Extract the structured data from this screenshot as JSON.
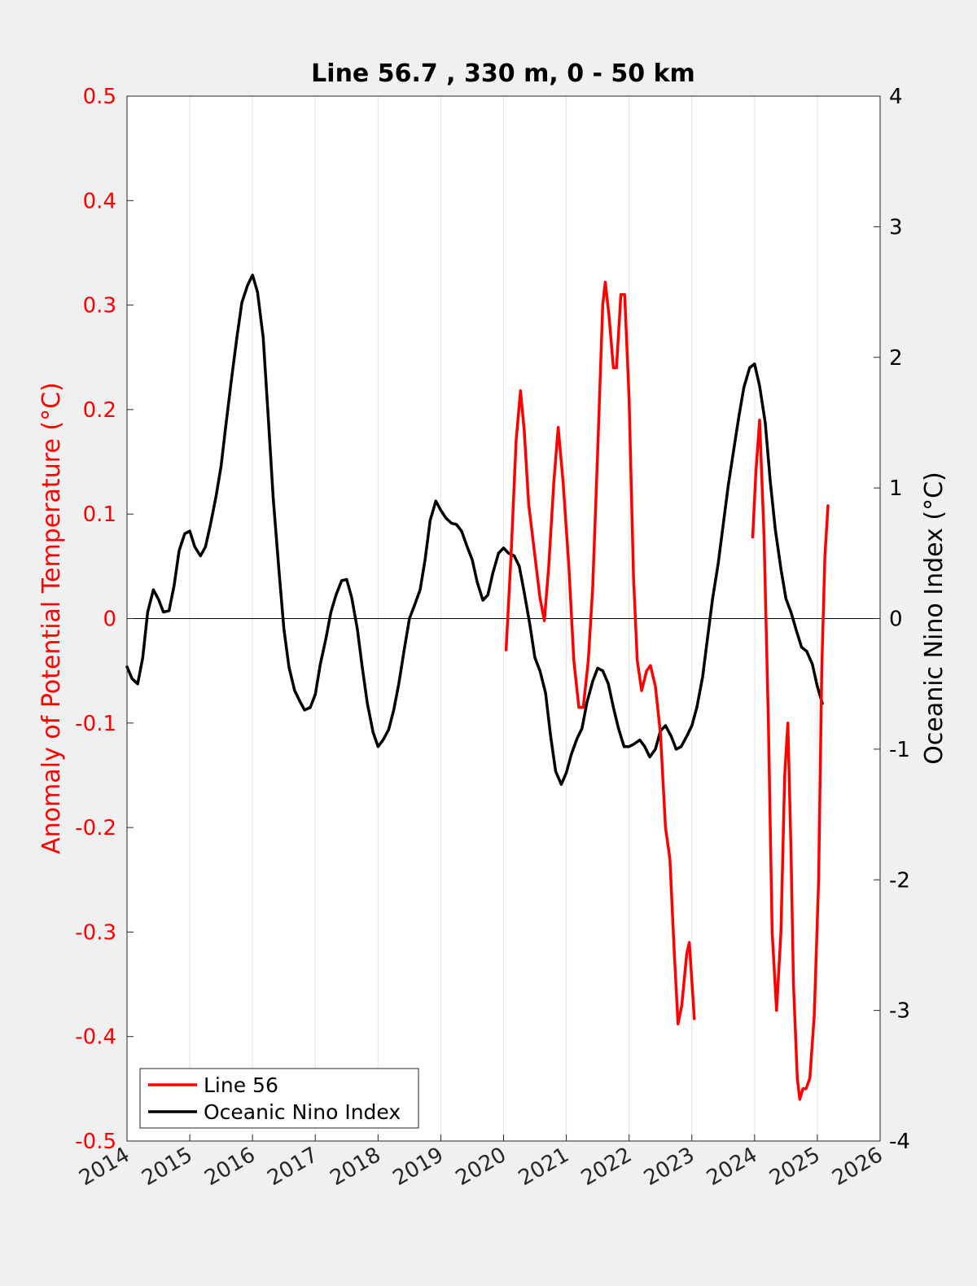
{
  "chart_data": {
    "type": "line",
    "title": "Line 56.7 , 330 m, 0 - 50 km",
    "xlabel": "",
    "ylabel_left": "Anomaly of Potential Temperature (°C)",
    "ylabel_right": "Oceanic Nino Index (°C)",
    "xlim": [
      2014,
      2026
    ],
    "ylim_left": [
      -0.5,
      0.5
    ],
    "ylim_right": [
      -4,
      4
    ],
    "x_ticks": [
      2014,
      2015,
      2016,
      2017,
      2018,
      2019,
      2020,
      2021,
      2022,
      2023,
      2024,
      2025,
      2026
    ],
    "y_ticks_left": [
      "0.5",
      "0.4",
      "0.3",
      "0.2",
      "0.1",
      "0",
      "-0.1",
      "-0.2",
      "-0.3",
      "-0.4",
      "-0.5"
    ],
    "y_ticks_right": [
      "4",
      "3",
      "2",
      "1",
      "0",
      "-1",
      "-2",
      "-3",
      "-4"
    ],
    "grid_x": true,
    "grid_y": false,
    "legend_position": "bottom-left",
    "colors": {
      "line56": "#ff0000",
      "oni": "#000000",
      "left_axis": "#ff0000",
      "right_axis": "#000000"
    },
    "series": [
      {
        "name": "Line 56",
        "axis": "left",
        "segments": [
          [
            [
              2020.04,
              -0.03
            ],
            [
              2020.12,
              0.06
            ],
            [
              2020.2,
              0.17
            ],
            [
              2020.27,
              0.218
            ],
            [
              2020.33,
              0.18
            ],
            [
              2020.4,
              0.11
            ],
            [
              2020.5,
              0.06
            ],
            [
              2020.58,
              0.02
            ],
            [
              2020.65,
              -0.002
            ],
            [
              2020.72,
              0.05
            ],
            [
              2020.8,
              0.13
            ],
            [
              2020.87,
              0.183
            ],
            [
              2020.95,
              0.13
            ],
            [
              2021.04,
              0.05
            ],
            [
              2021.12,
              -0.04
            ],
            [
              2021.2,
              -0.085
            ],
            [
              2021.27,
              -0.085
            ],
            [
              2021.35,
              -0.04
            ],
            [
              2021.42,
              0.03
            ],
            [
              2021.5,
              0.16
            ],
            [
              2021.58,
              0.3
            ],
            [
              2021.62,
              0.322
            ],
            [
              2021.68,
              0.29
            ],
            [
              2021.75,
              0.24
            ],
            [
              2021.8,
              0.24
            ],
            [
              2021.87,
              0.31
            ],
            [
              2021.93,
              0.31
            ],
            [
              2022.0,
              0.21
            ],
            [
              2022.07,
              0.04
            ],
            [
              2022.13,
              -0.04
            ],
            [
              2022.2,
              -0.069
            ],
            [
              2022.28,
              -0.05
            ],
            [
              2022.34,
              -0.045
            ],
            [
              2022.42,
              -0.065
            ],
            [
              2022.5,
              -0.11
            ],
            [
              2022.58,
              -0.2
            ],
            [
              2022.65,
              -0.23
            ],
            [
              2022.72,
              -0.32
            ],
            [
              2022.78,
              -0.388
            ],
            [
              2022.84,
              -0.37
            ],
            [
              2022.92,
              -0.32
            ],
            [
              2022.96,
              -0.31
            ],
            [
              2023.04,
              -0.383
            ]
          ],
          [
            [
              2023.97,
              0.078
            ],
            [
              2024.02,
              0.14
            ],
            [
              2024.08,
              0.19
            ],
            [
              2024.15,
              0.08
            ],
            [
              2024.22,
              -0.1
            ],
            [
              2024.28,
              -0.3
            ],
            [
              2024.35,
              -0.375
            ],
            [
              2024.42,
              -0.3
            ],
            [
              2024.48,
              -0.15
            ],
            [
              2024.53,
              -0.1
            ],
            [
              2024.58,
              -0.22
            ],
            [
              2024.62,
              -0.35
            ],
            [
              2024.68,
              -0.44
            ],
            [
              2024.72,
              -0.46
            ],
            [
              2024.77,
              -0.45
            ],
            [
              2024.82,
              -0.45
            ],
            [
              2024.88,
              -0.44
            ],
            [
              2024.95,
              -0.38
            ],
            [
              2025.02,
              -0.25
            ],
            [
              2025.07,
              -0.05
            ],
            [
              2025.12,
              0.06
            ],
            [
              2025.17,
              0.108
            ]
          ]
        ]
      },
      {
        "name": "Oceanic Nino Index",
        "axis": "right",
        "points": [
          [
            2014.0,
            -0.37
          ],
          [
            2014.08,
            -0.46
          ],
          [
            2014.17,
            -0.5
          ],
          [
            2014.25,
            -0.3
          ],
          [
            2014.33,
            0.05
          ],
          [
            2014.42,
            0.22
          ],
          [
            2014.5,
            0.15
          ],
          [
            2014.58,
            0.05
          ],
          [
            2014.67,
            0.06
          ],
          [
            2014.75,
            0.25
          ],
          [
            2014.83,
            0.52
          ],
          [
            2014.92,
            0.65
          ],
          [
            2015.0,
            0.67
          ],
          [
            2015.08,
            0.55
          ],
          [
            2015.17,
            0.48
          ],
          [
            2015.25,
            0.55
          ],
          [
            2015.33,
            0.72
          ],
          [
            2015.42,
            0.94
          ],
          [
            2015.5,
            1.17
          ],
          [
            2015.58,
            1.5
          ],
          [
            2015.67,
            1.85
          ],
          [
            2015.75,
            2.15
          ],
          [
            2015.83,
            2.42
          ],
          [
            2015.92,
            2.55
          ],
          [
            2016.0,
            2.63
          ],
          [
            2016.08,
            2.5
          ],
          [
            2016.17,
            2.15
          ],
          [
            2016.25,
            1.55
          ],
          [
            2016.33,
            0.92
          ],
          [
            2016.42,
            0.38
          ],
          [
            2016.5,
            -0.08
          ],
          [
            2016.58,
            -0.37
          ],
          [
            2016.67,
            -0.55
          ],
          [
            2016.75,
            -0.63
          ],
          [
            2016.83,
            -0.7
          ],
          [
            2016.92,
            -0.68
          ],
          [
            2017.0,
            -0.58
          ],
          [
            2017.08,
            -0.35
          ],
          [
            2017.17,
            -0.15
          ],
          [
            2017.25,
            0.05
          ],
          [
            2017.33,
            0.18
          ],
          [
            2017.42,
            0.29
          ],
          [
            2017.5,
            0.3
          ],
          [
            2017.58,
            0.16
          ],
          [
            2017.67,
            -0.08
          ],
          [
            2017.75,
            -0.38
          ],
          [
            2017.83,
            -0.65
          ],
          [
            2017.92,
            -0.87
          ],
          [
            2018.0,
            -0.98
          ],
          [
            2018.08,
            -0.93
          ],
          [
            2018.17,
            -0.85
          ],
          [
            2018.25,
            -0.7
          ],
          [
            2018.33,
            -0.5
          ],
          [
            2018.42,
            -0.23
          ],
          [
            2018.5,
            0.0
          ],
          [
            2018.58,
            0.1
          ],
          [
            2018.67,
            0.22
          ],
          [
            2018.75,
            0.45
          ],
          [
            2018.83,
            0.75
          ],
          [
            2018.92,
            0.9
          ],
          [
            2019.0,
            0.83
          ],
          [
            2019.08,
            0.77
          ],
          [
            2019.17,
            0.73
          ],
          [
            2019.25,
            0.72
          ],
          [
            2019.33,
            0.67
          ],
          [
            2019.42,
            0.55
          ],
          [
            2019.5,
            0.45
          ],
          [
            2019.58,
            0.28
          ],
          [
            2019.67,
            0.14
          ],
          [
            2019.75,
            0.18
          ],
          [
            2019.83,
            0.35
          ],
          [
            2019.92,
            0.5
          ],
          [
            2020.0,
            0.54
          ],
          [
            2020.08,
            0.5
          ],
          [
            2020.17,
            0.48
          ],
          [
            2020.25,
            0.4
          ],
          [
            2020.33,
            0.2
          ],
          [
            2020.42,
            -0.05
          ],
          [
            2020.5,
            -0.3
          ],
          [
            2020.58,
            -0.4
          ],
          [
            2020.67,
            -0.57
          ],
          [
            2020.75,
            -0.9
          ],
          [
            2020.83,
            -1.17
          ],
          [
            2020.92,
            -1.27
          ],
          [
            2021.0,
            -1.18
          ],
          [
            2021.08,
            -1.04
          ],
          [
            2021.17,
            -0.92
          ],
          [
            2021.25,
            -0.84
          ],
          [
            2021.33,
            -0.64
          ],
          [
            2021.42,
            -0.48
          ],
          [
            2021.5,
            -0.38
          ],
          [
            2021.58,
            -0.4
          ],
          [
            2021.67,
            -0.5
          ],
          [
            2021.75,
            -0.68
          ],
          [
            2021.83,
            -0.84
          ],
          [
            2021.92,
            -0.98
          ],
          [
            2022.0,
            -0.98
          ],
          [
            2022.08,
            -0.96
          ],
          [
            2022.17,
            -0.93
          ],
          [
            2022.25,
            -0.98
          ],
          [
            2022.33,
            -1.06
          ],
          [
            2022.42,
            -1.0
          ],
          [
            2022.5,
            -0.86
          ],
          [
            2022.58,
            -0.82
          ],
          [
            2022.67,
            -0.9
          ],
          [
            2022.75,
            -1.0
          ],
          [
            2022.83,
            -0.98
          ],
          [
            2022.92,
            -0.9
          ],
          [
            2023.0,
            -0.82
          ],
          [
            2023.08,
            -0.68
          ],
          [
            2023.17,
            -0.45
          ],
          [
            2023.25,
            -0.15
          ],
          [
            2023.33,
            0.15
          ],
          [
            2023.42,
            0.42
          ],
          [
            2023.5,
            0.72
          ],
          [
            2023.58,
            1.02
          ],
          [
            2023.67,
            1.3
          ],
          [
            2023.75,
            1.55
          ],
          [
            2023.83,
            1.77
          ],
          [
            2023.92,
            1.92
          ],
          [
            2024.0,
            1.95
          ],
          [
            2024.08,
            1.78
          ],
          [
            2024.17,
            1.5
          ],
          [
            2024.25,
            1.05
          ],
          [
            2024.33,
            0.68
          ],
          [
            2024.42,
            0.38
          ],
          [
            2024.5,
            0.15
          ],
          [
            2024.58,
            0.05
          ],
          [
            2024.67,
            -0.1
          ],
          [
            2024.75,
            -0.22
          ],
          [
            2024.83,
            -0.25
          ],
          [
            2024.92,
            -0.35
          ],
          [
            2025.0,
            -0.52
          ],
          [
            2025.08,
            -0.65
          ]
        ]
      }
    ]
  }
}
